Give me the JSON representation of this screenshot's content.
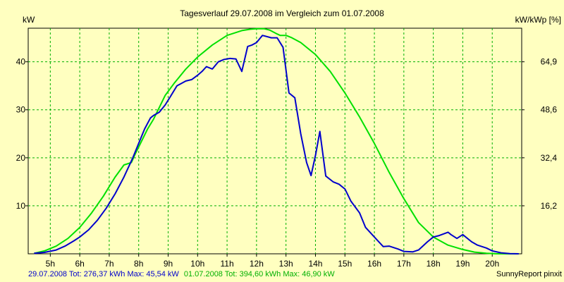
{
  "chart_data": {
    "type": "line",
    "title": "Tagesverlauf 29.07.2008 im Vergleich zum 01.07.2008",
    "y_left_unit": "kW",
    "y_right_unit": "kW/kWp [%]",
    "x_unit": "h",
    "x_range": [
      4.25,
      21.0
    ],
    "y_range": [
      0,
      47
    ],
    "grid": true,
    "x_ticks": [
      "5h",
      "6h",
      "7h",
      "8h",
      "9h",
      "10h",
      "11h",
      "12h",
      "13h",
      "14h",
      "15h",
      "16h",
      "17h",
      "18h",
      "19h",
      "20h"
    ],
    "x_tick_values": [
      5,
      6,
      7,
      8,
      9,
      10,
      11,
      12,
      13,
      14,
      15,
      16,
      17,
      18,
      19,
      20
    ],
    "y_left_ticks": [
      "10",
      "20",
      "30",
      "40"
    ],
    "y_left_tick_values": [
      10,
      20,
      30,
      40
    ],
    "y_right_ticks": [
      "16,2",
      "32,4",
      "48,6",
      "64,9"
    ],
    "y_right_tick_values": [
      10,
      20,
      30,
      40
    ],
    "series": [
      {
        "name": "29.07.2008",
        "color": "#0000cc",
        "x": [
          4.45,
          4.8,
          5.2,
          5.5,
          5.8,
          6.0,
          6.3,
          6.6,
          6.9,
          7.2,
          7.5,
          7.8,
          8.0,
          8.2,
          8.4,
          8.5,
          8.7,
          8.9,
          9.1,
          9.3,
          9.6,
          9.8,
          10.0,
          10.15,
          10.3,
          10.5,
          10.7,
          10.9,
          11.1,
          11.3,
          11.5,
          11.7,
          11.85,
          12.0,
          12.2,
          12.5,
          12.7,
          12.9,
          13.1,
          13.3,
          13.5,
          13.7,
          13.85,
          14.0,
          14.15,
          14.35,
          14.6,
          14.8,
          15.0,
          15.2,
          15.5,
          15.7,
          16.0,
          16.3,
          16.5,
          16.8,
          17.0,
          17.3,
          17.5,
          17.8,
          18.0,
          18.2,
          18.5,
          18.6,
          18.8,
          19.0,
          19.3,
          19.5,
          19.8,
          20.0,
          20.3,
          20.6,
          20.9
        ],
        "y": [
          0.1,
          0.3,
          0.8,
          1.6,
          2.7,
          3.5,
          5.0,
          7.0,
          9.5,
          12.5,
          16.0,
          20.0,
          23.0,
          26.0,
          28.3,
          28.8,
          29.5,
          31.0,
          33.0,
          35.0,
          36.0,
          36.3,
          37.2,
          38.0,
          39.0,
          38.5,
          40.0,
          40.5,
          40.7,
          40.6,
          38.0,
          43.2,
          43.5,
          44.0,
          45.5,
          45.0,
          45.0,
          43.0,
          33.5,
          32.5,
          25.0,
          19.0,
          16.3,
          20.5,
          25.5,
          16.2,
          15.0,
          14.5,
          13.5,
          11.0,
          8.5,
          5.5,
          3.5,
          1.5,
          1.6,
          1.0,
          0.5,
          0.4,
          0.8,
          2.5,
          3.5,
          3.8,
          4.5,
          4.0,
          3.2,
          4.0,
          2.5,
          1.8,
          1.2,
          0.6,
          0.2,
          0.05,
          0.0
        ]
      },
      {
        "name": "01.07.2008",
        "color": "#00e000",
        "x": [
          4.45,
          4.8,
          5.2,
          5.6,
          6.0,
          6.4,
          6.8,
          7.2,
          7.5,
          7.75,
          7.9,
          8.1,
          8.3,
          8.5,
          8.7,
          8.9,
          9.2,
          9.6,
          10.0,
          10.5,
          11.0,
          11.5,
          11.8,
          12.0,
          12.25,
          12.45,
          12.7,
          12.8,
          13.0,
          13.2,
          13.5,
          14.0,
          14.5,
          15.0,
          15.5,
          16.0,
          16.5,
          17.0,
          17.5,
          18.0,
          18.5,
          19.0,
          19.4,
          19.8,
          20.1,
          20.4,
          20.7,
          20.9
        ],
        "y": [
          0.1,
          0.6,
          1.6,
          3.2,
          5.5,
          8.5,
          12.0,
          16.0,
          18.5,
          19.0,
          21.0,
          23.5,
          26.0,
          28.0,
          30.5,
          33.0,
          35.5,
          38.5,
          41.0,
          43.5,
          45.5,
          46.5,
          46.8,
          46.9,
          46.9,
          46.6,
          45.8,
          45.5,
          45.5,
          45.0,
          44.0,
          41.5,
          38.0,
          33.5,
          28.5,
          23.0,
          17.0,
          11.5,
          6.5,
          3.5,
          1.8,
          0.9,
          0.35,
          0.1,
          0.02,
          0.0,
          0.0,
          0.0
        ]
      }
    ]
  },
  "footer": {
    "series1_text": "29.07.2008 Tot: 276,37 kWh Max: 45,54 kW",
    "series2_text": "01.07.2008 Tot: 394,60 kWh Max: 46,90 kW",
    "credit": "SunnyReport pinxit"
  }
}
